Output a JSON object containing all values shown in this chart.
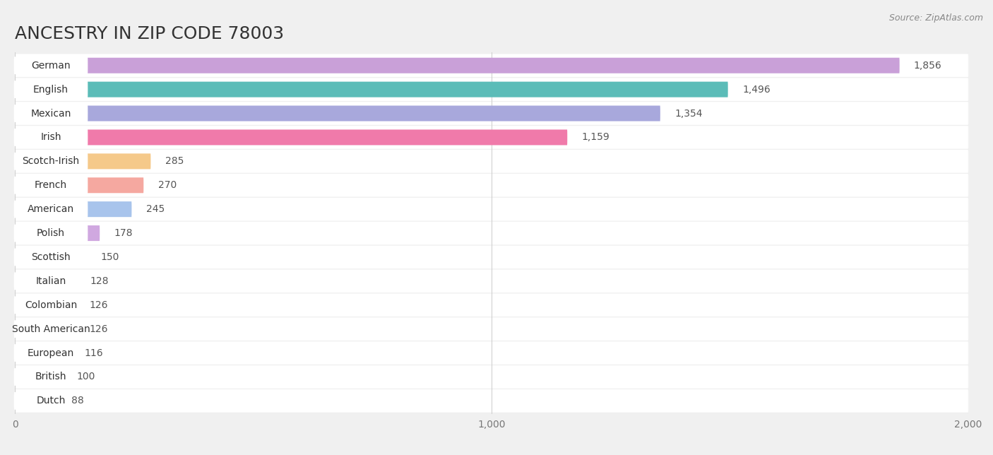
{
  "title": "ANCESTRY IN ZIP CODE 78003",
  "source": "Source: ZipAtlas.com",
  "categories": [
    "German",
    "English",
    "Mexican",
    "Irish",
    "Scotch-Irish",
    "French",
    "American",
    "Polish",
    "Scottish",
    "Italian",
    "Colombian",
    "South American",
    "European",
    "British",
    "Dutch"
  ],
  "values": [
    1856,
    1496,
    1354,
    1159,
    285,
    270,
    245,
    178,
    150,
    128,
    126,
    126,
    116,
    100,
    88
  ],
  "colors": [
    "#c9a0d8",
    "#5bbcb8",
    "#a8a8dc",
    "#f07aaa",
    "#f5c98a",
    "#f5a8a0",
    "#a8c4ec",
    "#d0a8e0",
    "#7dd4c8",
    "#b0b0e0",
    "#f5a0bc",
    "#f5c890",
    "#f0b0b0",
    "#a8bce8",
    "#c8b4e0"
  ],
  "xlim": [
    0,
    2000
  ],
  "xticks": [
    0,
    1000,
    2000
  ],
  "xtick_labels": [
    "0",
    "1,000",
    "2,000"
  ],
  "background_color": "#f0f0f0",
  "row_bg_color": "#ffffff",
  "title_fontsize": 18,
  "label_fontsize": 10,
  "value_fontsize": 10,
  "value_color": "#555555",
  "label_color": "#333333",
  "title_color": "#333333"
}
